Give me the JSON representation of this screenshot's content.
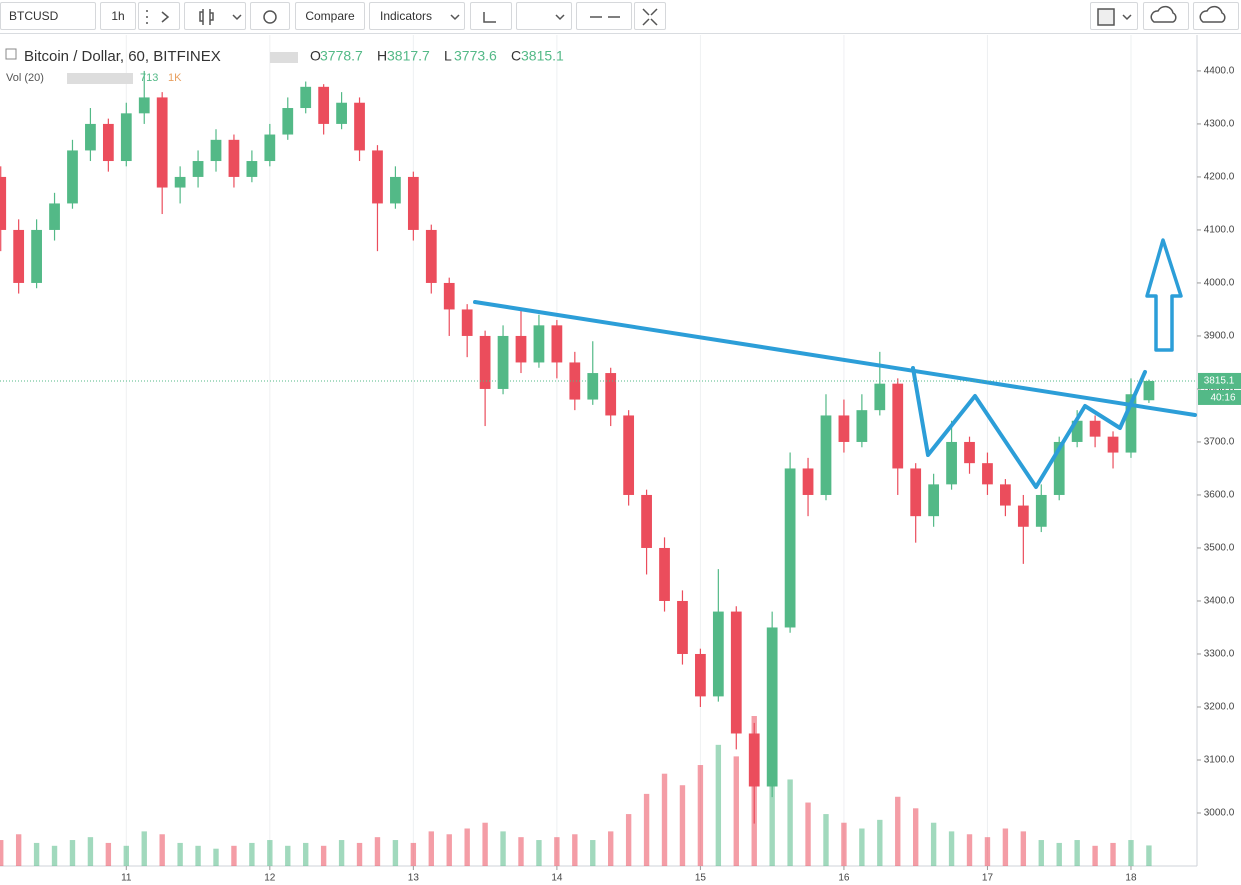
{
  "toolbar": {
    "symbol": "BTCUSD",
    "interval": "1h",
    "compare": "Compare",
    "indicators": "Indicators"
  },
  "chart_data": {
    "type": "candlestick",
    "title": "Bitcoin / Dollar, 60, BITFINEX",
    "legend_keys": [
      "O",
      "H",
      "L",
      "C"
    ],
    "volume_label": "Vol (20)",
    "volume_scale_label": "1K",
    "last_price_countdown": "40:16",
    "up_color": "#53b987",
    "down_color": "#eb4d5c",
    "grid": true,
    "xlim": [
      10.12,
      18.46
    ],
    "ylim": [
      2900,
      4464
    ],
    "xticks": [
      11,
      12,
      13,
      14,
      15,
      16,
      17,
      18
    ],
    "yticks": [
      {
        "value": 3000,
        "label": "3000.0"
      },
      {
        "value": 3100,
        "label": "3100.0"
      },
      {
        "value": 3200,
        "label": "3200.0"
      },
      {
        "value": 3300,
        "label": "3300.0"
      },
      {
        "value": 3400,
        "label": "3400.0"
      },
      {
        "value": 3500,
        "label": "3500.0"
      },
      {
        "value": 3600,
        "label": "3600.0"
      },
      {
        "value": 3700,
        "label": "3700.0"
      },
      {
        "value": 3800,
        "label": "3800.0"
      },
      {
        "value": 3900,
        "label": "3900.0"
      },
      {
        "value": 4000,
        "label": "4000.0"
      },
      {
        "value": 4100,
        "label": "4100.0"
      },
      {
        "value": 4200,
        "label": "4200.0"
      },
      {
        "value": 4300,
        "label": "4300.0"
      },
      {
        "value": 4400,
        "label": "4400.0"
      }
    ],
    "x": [
      10.125,
      10.25,
      10.375,
      10.5,
      10.625,
      10.75,
      10.875,
      11,
      11.125,
      11.25,
      11.375,
      11.5,
      11.625,
      11.75,
      11.875,
      12,
      12.125,
      12.25,
      12.375,
      12.5,
      12.625,
      12.75,
      12.875,
      13,
      13.125,
      13.25,
      13.375,
      13.5,
      13.625,
      13.75,
      13.875,
      14,
      14.125,
      14.25,
      14.375,
      14.5,
      14.625,
      14.75,
      14.875,
      15,
      15.125,
      15.25,
      15.375,
      15.5,
      15.625,
      15.75,
      15.875,
      16,
      16.125,
      16.25,
      16.375,
      16.5,
      16.625,
      16.75,
      16.875,
      17,
      17.125,
      17.25,
      17.375,
      17.5,
      17.625,
      17.75,
      17.875,
      18,
      18.125
    ],
    "open": [
      4200,
      4100,
      4000,
      4100,
      4150,
      4250,
      4300,
      4230,
      4320,
      4350,
      4180,
      4200,
      4230,
      4270,
      4200,
      4230,
      4280,
      4330,
      4370,
      4300,
      4340,
      4250,
      4150,
      4200,
      4100,
      4000,
      3950,
      3900,
      3800,
      3900,
      3850,
      3920,
      3850,
      3780,
      3830,
      3750,
      3600,
      3500,
      3400,
      3300,
      3220,
      3380,
      3150,
      3050,
      3350,
      3650,
      3600,
      3750,
      3700,
      3760,
      3810,
      3650,
      3560,
      3620,
      3700,
      3660,
      3620,
      3580,
      3540,
      3600,
      3700,
      3740,
      3710,
      3680,
      3778.7
    ],
    "high": [
      4220,
      4120,
      4120,
      4170,
      4270,
      4330,
      4310,
      4340,
      4400,
      4360,
      4220,
      4250,
      4290,
      4280,
      4250,
      4300,
      4350,
      4380,
      4375,
      4360,
      4350,
      4260,
      4220,
      4210,
      4110,
      4010,
      3960,
      3910,
      3920,
      3950,
      3940,
      3930,
      3870,
      3890,
      3840,
      3760,
      3610,
      3520,
      3420,
      3310,
      3460,
      3390,
      3170,
      3380,
      3680,
      3670,
      3790,
      3780,
      3790,
      3870,
      3820,
      3660,
      3640,
      3740,
      3710,
      3680,
      3630,
      3600,
      3620,
      3710,
      3760,
      3750,
      3720,
      3820,
      3817.7
    ],
    "low": [
      4060,
      3980,
      3990,
      4080,
      4140,
      4230,
      4210,
      4220,
      4300,
      4130,
      4150,
      4180,
      4210,
      4180,
      4190,
      4220,
      4270,
      4320,
      4280,
      4290,
      4230,
      4060,
      4140,
      4080,
      3980,
      3900,
      3860,
      3730,
      3790,
      3830,
      3840,
      3820,
      3760,
      3770,
      3730,
      3580,
      3450,
      3380,
      3280,
      3200,
      3210,
      3120,
      2980,
      3030,
      3340,
      3560,
      3590,
      3680,
      3690,
      3750,
      3600,
      3510,
      3540,
      3610,
      3640,
      3600,
      3560,
      3470,
      3530,
      3590,
      3690,
      3690,
      3650,
      3670,
      3773.6
    ],
    "close": [
      4100,
      4000,
      4100,
      4150,
      4250,
      4300,
      4230,
      4320,
      4350,
      4180,
      4200,
      4230,
      4270,
      4200,
      4230,
      4280,
      4330,
      4370,
      4300,
      4340,
      4250,
      4150,
      4200,
      4100,
      4000,
      3950,
      3900,
      3800,
      3900,
      3850,
      3920,
      3850,
      3780,
      3830,
      3750,
      3600,
      3500,
      3400,
      3300,
      3220,
      3380,
      3150,
      3050,
      3350,
      3650,
      3600,
      3750,
      3700,
      3760,
      3810,
      3650,
      3560,
      3620,
      3700,
      3660,
      3620,
      3580,
      3540,
      3600,
      3700,
      3740,
      3710,
      3680,
      3790,
      3815.1
    ],
    "volume": [
      900,
      1100,
      800,
      700,
      900,
      1000,
      800,
      700,
      1200,
      1100,
      800,
      700,
      600,
      700,
      800,
      900,
      700,
      800,
      700,
      900,
      800,
      1000,
      900,
      800,
      1200,
      1100,
      1300,
      1500,
      1200,
      1000,
      900,
      1000,
      1100,
      900,
      1200,
      1800,
      2500,
      3200,
      2800,
      3500,
      4200,
      3800,
      5200,
      4600,
      3000,
      2200,
      1800,
      1500,
      1300,
      1600,
      2400,
      2000,
      1500,
      1200,
      1100,
      1000,
      1300,
      1200,
      900,
      800,
      900,
      700,
      800,
      900,
      713
    ]
  }
}
